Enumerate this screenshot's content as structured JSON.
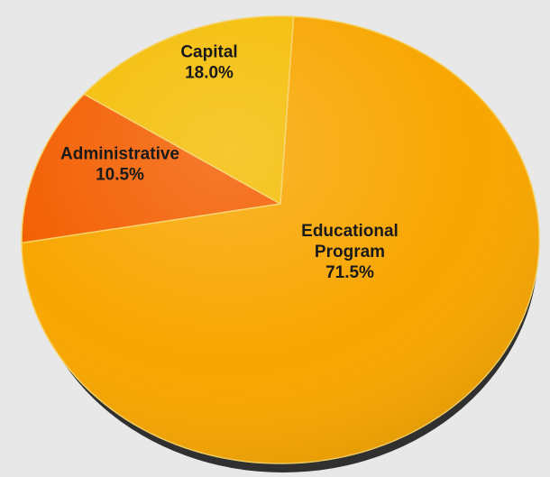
{
  "chart_data": {
    "type": "pie",
    "title": "",
    "slices": [
      {
        "label": "Educational Program",
        "label_lines": [
          "Educational",
          "Program"
        ],
        "value": 71.5,
        "value_label": "71.5%",
        "color": "#F8A600"
      },
      {
        "label": "Administrative",
        "label_lines": [
          "Administrative"
        ],
        "value": 10.5,
        "value_label": "10.5%",
        "color": "#F35E00"
      },
      {
        "label": "Capital",
        "label_lines": [
          "Capital"
        ],
        "value": 18.0,
        "value_label": "18.0%",
        "color": "#F4BD05"
      }
    ],
    "legend": "none",
    "background_color": "#E8E8E8"
  }
}
